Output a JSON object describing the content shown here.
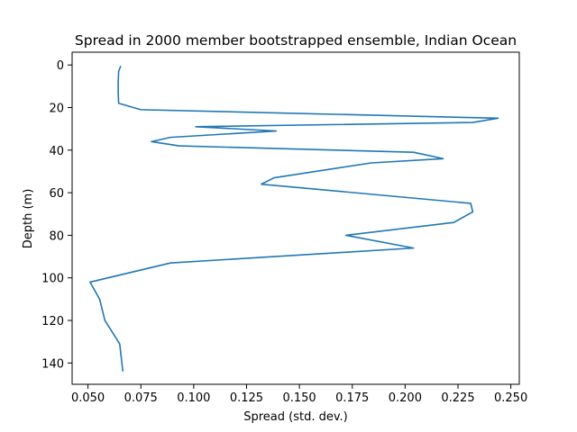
{
  "chart_data": {
    "type": "line",
    "title": "Spread in 2000 member bootstrapped ensemble, Indian Ocean",
    "xlabel": "Spread (std. dev.)",
    "ylabel": "Depth (m)",
    "xlim": [
      0.0425,
      0.254
    ],
    "ylim": [
      150,
      -6
    ],
    "y_inverted": true,
    "xticks": [
      0.05,
      0.075,
      0.1,
      0.125,
      0.15,
      0.175,
      0.2,
      0.225,
      0.25
    ],
    "xtick_labels": [
      "0.050",
      "0.075",
      "0.100",
      "0.125",
      "0.150",
      "0.175",
      "0.200",
      "0.225",
      "0.250"
    ],
    "yticks": [
      0,
      20,
      40,
      60,
      80,
      100,
      120,
      140
    ],
    "ytick_labels": [
      "0",
      "20",
      "40",
      "60",
      "80",
      "100",
      "120",
      "140"
    ],
    "grid": false,
    "series": [
      {
        "color": "#1f77b4",
        "points": [
          {
            "x": 0.0655,
            "y": 0.5
          },
          {
            "x": 0.0645,
            "y": 3
          },
          {
            "x": 0.0643,
            "y": 8
          },
          {
            "x": 0.0643,
            "y": 13
          },
          {
            "x": 0.0645,
            "y": 18
          },
          {
            "x": 0.075,
            "y": 21
          },
          {
            "x": 0.244,
            "y": 25
          },
          {
            "x": 0.232,
            "y": 27
          },
          {
            "x": 0.101,
            "y": 29
          },
          {
            "x": 0.139,
            "y": 31
          },
          {
            "x": 0.089,
            "y": 34
          },
          {
            "x": 0.08,
            "y": 36
          },
          {
            "x": 0.093,
            "y": 38
          },
          {
            "x": 0.204,
            "y": 41
          },
          {
            "x": 0.218,
            "y": 44
          },
          {
            "x": 0.184,
            "y": 46
          },
          {
            "x": 0.138,
            "y": 53
          },
          {
            "x": 0.132,
            "y": 56
          },
          {
            "x": 0.231,
            "y": 65
          },
          {
            "x": 0.232,
            "y": 69
          },
          {
            "x": 0.223,
            "y": 74
          },
          {
            "x": 0.172,
            "y": 80
          },
          {
            "x": 0.204,
            "y": 86
          },
          {
            "x": 0.089,
            "y": 93
          },
          {
            "x": 0.051,
            "y": 102
          },
          {
            "x": 0.0555,
            "y": 110
          },
          {
            "x": 0.058,
            "y": 120
          },
          {
            "x": 0.065,
            "y": 131
          },
          {
            "x": 0.0665,
            "y": 144
          }
        ]
      }
    ]
  }
}
